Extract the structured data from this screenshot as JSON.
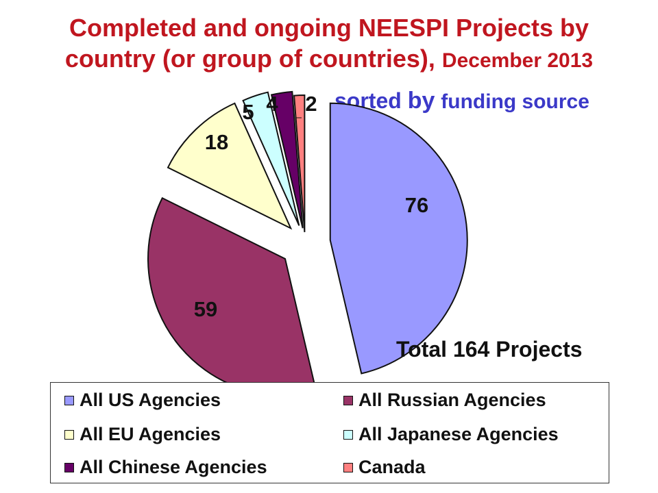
{
  "chart_data": {
    "type": "pie",
    "title_line1": "Completed and ongoing NEESPI Projects by",
    "title_line2_main": "country (or group of countries),",
    "title_line2_date": "December 2013",
    "subtitle_prefix": "sorted",
    "subtitle_by": "by",
    "subtitle_rest": "funding source",
    "total_label": "Total 164 Projects",
    "slices": [
      {
        "label": "All US Agencies",
        "value": 76,
        "color": "#9999ff"
      },
      {
        "label": "All Russian Agencies",
        "value": 59,
        "color": "#993366"
      },
      {
        "label": "All EU Agencies",
        "value": 18,
        "color": "#ffffcc"
      },
      {
        "label": "All Japanese Agencies",
        "value": 5,
        "color": "#ccffff"
      },
      {
        "label": "All Chinese Agencies",
        "value": 4,
        "color": "#660066"
      },
      {
        "label": "Canada",
        "value": 2,
        "color": "#ff8080"
      }
    ],
    "legend_position": "bottom"
  }
}
